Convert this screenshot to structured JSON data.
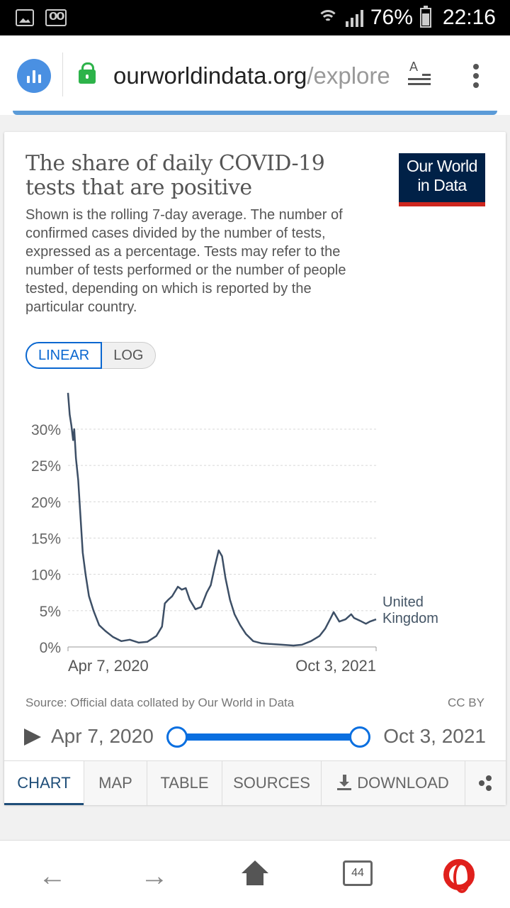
{
  "status_bar": {
    "battery": "76%",
    "time": "22:16",
    "icons": [
      "image-icon",
      "voicemail-icon",
      "wifi-icon",
      "signal-icon",
      "battery-icon"
    ]
  },
  "browser": {
    "url_host": "ourworldindata.org",
    "url_path": "/explore",
    "icons": [
      "site-chart-icon",
      "lock-icon",
      "reader-mode-icon",
      "more-vert-icon"
    ]
  },
  "card": {
    "title": "The share of daily COVID-19 tests that are positive",
    "subtitle": "Shown is the rolling 7-day average. The number of confirmed cases divided by the number of tests, expressed as a percentage. Tests may refer to the number of tests performed or the number of people tested, depending on which is reported by the particular country.",
    "logo_line1": "Our World",
    "logo_line2": "in Data",
    "scale_options": [
      "LINEAR",
      "LOG"
    ],
    "scale_selected": "LINEAR",
    "source": "Source: Official data collated by Our World in Data",
    "license": "CC BY",
    "timeline": {
      "start": "Apr 7, 2020",
      "end": "Oct 3, 2021",
      "start_position": 0,
      "end_position": 1
    },
    "tabs": [
      "CHART",
      "MAP",
      "TABLE",
      "SOURCES",
      "DOWNLOAD"
    ],
    "active_tab": "CHART"
  },
  "chart_data": {
    "type": "line",
    "title": "The share of daily COVID-19 tests that are positive",
    "xlabel": "",
    "ylabel": "",
    "ylim": [
      0,
      30
    ],
    "yticks": [
      "0%",
      "5%",
      "10%",
      "15%",
      "20%",
      "25%",
      "30%"
    ],
    "x_tick_labels": [
      "Apr 7, 2020",
      "Oct 3, 2021"
    ],
    "grid": true,
    "line_color": "#3d4f66",
    "series": [
      {
        "name": "United Kingdom",
        "x": [
          "2020-04-07",
          "2020-04-10",
          "2020-04-13",
          "2020-04-16",
          "2020-04-18",
          "2020-04-21",
          "2020-04-25",
          "2020-04-29",
          "2020-05-03",
          "2020-05-08",
          "2020-05-14",
          "2020-05-22",
          "2020-06-01",
          "2020-06-12",
          "2020-06-25",
          "2020-07-10",
          "2020-07-25",
          "2020-08-10",
          "2020-08-25",
          "2020-09-10",
          "2020-09-20",
          "2020-09-25",
          "2020-10-01",
          "2020-10-08",
          "2020-10-18",
          "2020-10-25",
          "2020-11-01",
          "2020-11-08",
          "2020-11-18",
          "2020-11-28",
          "2020-12-08",
          "2020-12-15",
          "2020-12-22",
          "2020-12-29",
          "2021-01-04",
          "2021-01-10",
          "2021-01-18",
          "2021-01-26",
          "2021-02-05",
          "2021-02-15",
          "2021-02-28",
          "2021-03-15",
          "2021-04-01",
          "2021-04-20",
          "2021-05-10",
          "2021-05-25",
          "2021-06-10",
          "2021-06-25",
          "2021-07-05",
          "2021-07-15",
          "2021-07-20",
          "2021-07-30",
          "2021-08-10",
          "2021-08-20",
          "2021-08-25",
          "2021-09-05",
          "2021-09-15",
          "2021-09-22",
          "2021-10-03"
        ],
        "values": [
          35.0,
          32.0,
          30.5,
          28.5,
          30.0,
          26.0,
          23.0,
          18.0,
          13.0,
          10.0,
          7.0,
          5.0,
          3.0,
          2.2,
          1.4,
          0.8,
          1.0,
          0.6,
          0.7,
          1.5,
          2.8,
          6.0,
          6.5,
          7.0,
          8.3,
          7.9,
          8.1,
          6.5,
          5.2,
          5.5,
          7.5,
          8.5,
          11.0,
          13.3,
          12.5,
          9.5,
          6.5,
          4.5,
          3.0,
          1.8,
          0.8,
          0.5,
          0.4,
          0.3,
          0.2,
          0.3,
          0.8,
          1.5,
          2.5,
          4.0,
          4.8,
          3.5,
          3.8,
          4.5,
          4.0,
          3.6,
          3.2,
          3.5,
          3.8
        ]
      }
    ]
  },
  "bottom_nav": {
    "tab_count": "44",
    "icons": [
      "back-arrow-icon",
      "forward-arrow-icon",
      "home-icon",
      "tabs-icon",
      "opera-icon"
    ],
    "back": "←",
    "forward": "→"
  }
}
